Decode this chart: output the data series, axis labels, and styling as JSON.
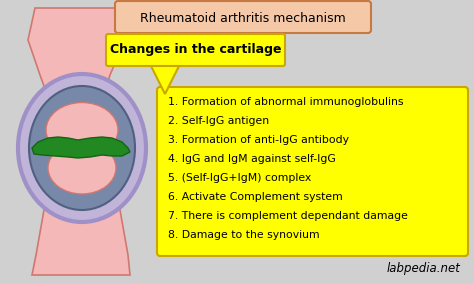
{
  "bg_color": "#d0d0d0",
  "title": "Rheumatoid arthritis mechanism",
  "title_box_color": "#f5c8a8",
  "title_border_color": "#c87841",
  "callout_text": "Changes in the cartilage",
  "callout_bg": "#ffff00",
  "callout_border": "#c8a800",
  "list_bg": "#ffff00",
  "list_border": "#c8a800",
  "list_items": [
    "1. Formation of abnormal immunoglobulins",
    "2. Self-IgG antigen",
    "3. Formation of anti-IgG antibody",
    "4. IgG and IgM against self-IgG",
    "5. (Self-IgG+IgM) complex",
    "6. Activate Complement system",
    "7. There is complement dependant damage",
    "8. Damage to the synovium"
  ],
  "watermark": "labpedia.net",
  "bone_color": "#f5b8b8",
  "bone_edge": "#d07870",
  "ring_color": "#c0b4d8",
  "ring_edge": "#a090c8",
  "inner_color": "#7888a8",
  "inner_edge": "#506080",
  "cartilage_color": "#228822",
  "cartilage_edge": "#116611"
}
